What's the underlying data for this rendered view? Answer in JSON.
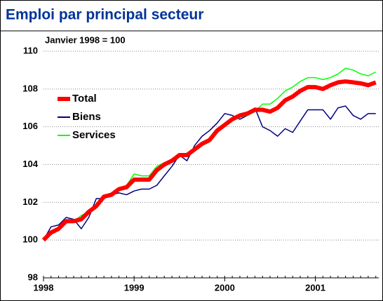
{
  "chart_data": {
    "type": "line",
    "title": "Emploi par principal secteur",
    "subtitle": "Janvier 1998 = 100",
    "x": [
      1998,
      1998.083,
      1998.167,
      1998.25,
      1998.333,
      1998.417,
      1998.5,
      1998.583,
      1998.667,
      1998.75,
      1998.833,
      1998.917,
      1999,
      1999.083,
      1999.167,
      1999.25,
      1999.333,
      1999.417,
      1999.5,
      1999.583,
      1999.667,
      1999.75,
      1999.833,
      1999.917,
      2000,
      2000.083,
      2000.167,
      2000.25,
      2000.333,
      2000.417,
      2000.5,
      2000.583,
      2000.667,
      2000.75,
      2000.833,
      2000.917,
      2001,
      2001.083,
      2001.167,
      2001.25,
      2001.333,
      2001.417,
      2001.5,
      2001.583,
      2001.667
    ],
    "xlim": [
      1998,
      2001.7
    ],
    "xticks": [
      1998,
      1999,
      2000,
      2001
    ],
    "ylim": [
      98,
      110
    ],
    "yticks": [
      98,
      100,
      102,
      104,
      106,
      108,
      110
    ],
    "grid": true,
    "legend": "upper left",
    "series": [
      {
        "name": "Total",
        "color": "#ff0000",
        "values": [
          100,
          100.4,
          100.6,
          101.0,
          101.0,
          101.1,
          101.5,
          101.8,
          102.3,
          102.4,
          102.7,
          102.8,
          103.2,
          103.2,
          103.2,
          103.7,
          104.0,
          104.2,
          104.5,
          104.5,
          104.8,
          105.1,
          105.3,
          105.8,
          106.1,
          106.4,
          106.6,
          106.7,
          106.9,
          106.9,
          106.8,
          107.0,
          107.4,
          107.6,
          107.9,
          108.1,
          108.1,
          108.0,
          108.2,
          108.35,
          108.4,
          108.35,
          108.3,
          108.2,
          108.35
        ]
      },
      {
        "name": "Biens",
        "color": "#000080",
        "values": [
          100,
          100.7,
          100.8,
          101.2,
          101.1,
          100.6,
          101.2,
          102.2,
          102.2,
          102.4,
          102.5,
          102.4,
          102.6,
          102.7,
          102.7,
          102.9,
          103.4,
          103.9,
          104.5,
          104.2,
          105.0,
          105.5,
          105.8,
          106.2,
          106.7,
          106.6,
          106.4,
          106.6,
          107.0,
          106.0,
          105.8,
          105.5,
          105.9,
          105.7,
          106.3,
          106.9,
          106.9,
          106.9,
          106.4,
          107.0,
          107.1,
          106.6,
          106.4,
          106.7,
          106.7
        ]
      },
      {
        "name": "Services",
        "color": "#00ff00",
        "values": [
          100,
          100.3,
          100.5,
          100.9,
          101.0,
          101.3,
          101.5,
          101.7,
          102.3,
          102.5,
          102.7,
          102.9,
          103.5,
          103.4,
          103.4,
          103.9,
          104.1,
          104.2,
          104.5,
          104.6,
          104.7,
          105.0,
          105.2,
          105.7,
          106.0,
          106.3,
          106.5,
          106.6,
          106.8,
          107.2,
          107.2,
          107.5,
          107.9,
          108.1,
          108.4,
          108.6,
          108.6,
          108.5,
          108.6,
          108.8,
          109.1,
          109.0,
          108.8,
          108.7,
          108.9
        ]
      }
    ]
  }
}
